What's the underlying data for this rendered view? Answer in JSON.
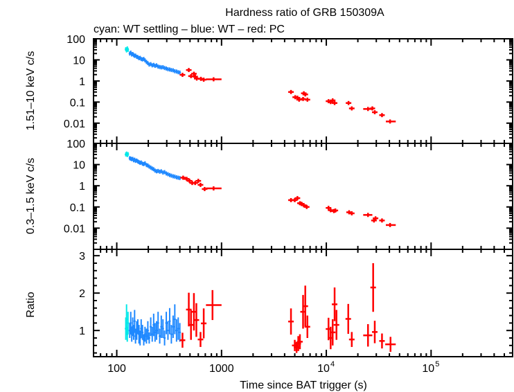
{
  "chart_data": {
    "type": "scatter",
    "title": "Hardness ratio of GRB 150309A",
    "subtitle": "cyan: WT settling – blue: WT – red: PC",
    "xlabel": "Time since BAT trigger (s)",
    "x_scale": "log",
    "xlim": [
      60,
      600000
    ],
    "x_ticks": [
      {
        "value": 100,
        "label": "100"
      },
      {
        "value": 1000,
        "label": "1000"
      },
      {
        "value": 10000,
        "label": "10",
        "exp": "4"
      },
      {
        "value": 100000,
        "label": "10",
        "exp": "5"
      }
    ],
    "colors": {
      "wt_settling": "#00e8e8",
      "wt": "#1e88ff",
      "pc": "#ff0000",
      "axes": "#000000"
    },
    "panels": [
      {
        "ylabel": "1.51–10 keV c/s",
        "y_scale": "log",
        "ylim": [
          0.0011,
          100
        ],
        "y_ticks": [
          {
            "value": 100,
            "label": "100"
          },
          {
            "value": 10,
            "label": "10"
          },
          {
            "value": 1,
            "label": "1"
          },
          {
            "value": 0.1,
            "label": "0.1"
          },
          {
            "value": 0.01,
            "label": "0.01"
          }
        ],
        "series": {
          "wt_settling": [
            [
              122,
              32
            ],
            [
              124,
              28
            ],
            [
              126,
              35
            ],
            [
              128,
              30
            ]
          ],
          "wt": [
            [
              133,
              20
            ],
            [
              136,
              22
            ],
            [
              139,
              18
            ],
            [
              142,
              19
            ],
            [
              145,
              17
            ],
            [
              148,
              15.5
            ],
            [
              151,
              16
            ],
            [
              155,
              14
            ],
            [
              159,
              13.5
            ],
            [
              163,
              12
            ],
            [
              167,
              12.5
            ],
            [
              171,
              11
            ],
            [
              176,
              10.5
            ],
            [
              181,
              11
            ],
            [
              186,
              9.5
            ],
            [
              192,
              8
            ],
            [
              198,
              7
            ],
            [
              204,
              6
            ],
            [
              211,
              6.3
            ],
            [
              218,
              5.5
            ],
            [
              225,
              5.8
            ],
            [
              232,
              5.2
            ],
            [
              240,
              5.5
            ],
            [
              248,
              4.8
            ],
            [
              257,
              4.6
            ],
            [
              266,
              4.4
            ],
            [
              276,
              4.5
            ],
            [
              286,
              4.1
            ],
            [
              297,
              3.9
            ],
            [
              308,
              3.6
            ],
            [
              320,
              3.5
            ],
            [
              332,
              3.3
            ],
            [
              345,
              3.2
            ],
            [
              358,
              2.9
            ],
            [
              372,
              2.8
            ],
            [
              386,
              2.6
            ],
            [
              400,
              2.5
            ]
          ],
          "pc": [
            [
              424,
              1.95
            ],
            [
              487,
              3.3
            ],
            [
              511,
              1.7
            ],
            [
              545,
              2.2
            ],
            [
              560,
              1.6
            ],
            [
              580,
              1.3
            ],
            [
              635,
              1.26
            ],
            [
              676,
              1.15
            ],
            [
              840,
              1.2,
              710,
              1000
            ],
            [
              4600,
              0.3
            ],
            [
              5050,
              0.17
            ],
            [
              5300,
              0.16
            ],
            [
              5500,
              0.13
            ],
            [
              6000,
              0.14
            ],
            [
              6100,
              0.26
            ],
            [
              6300,
              0.23
            ],
            [
              6600,
              0.13
            ],
            [
              10500,
              0.11
            ],
            [
              11000,
              0.1
            ],
            [
              11500,
              0.12
            ],
            [
              12000,
              0.09
            ],
            [
              16300,
              0.09
            ],
            [
              17500,
              0.05
            ],
            [
              25000,
              0.047,
              22500,
              27500
            ],
            [
              27500,
              0.05
            ],
            [
              29000,
              0.033
            ],
            [
              34000,
              0.024
            ],
            [
              40600,
              0.012,
              37000,
              46000
            ]
          ]
        }
      },
      {
        "ylabel": "0.3–1.5 keV c/s",
        "y_scale": "log",
        "ylim": [
          0.001,
          100
        ],
        "y_ticks": [
          {
            "value": 100,
            "label": "100"
          },
          {
            "value": 10,
            "label": "10"
          },
          {
            "value": 1,
            "label": "1"
          },
          {
            "value": 0.1,
            "label": "0.1"
          },
          {
            "value": 0.01,
            "label": "0.01"
          }
        ],
        "series": {
          "wt_settling": [
            [
              122,
              30
            ],
            [
              124,
              33
            ],
            [
              126,
              28
            ],
            [
              128,
              31
            ]
          ],
          "wt": [
            [
              133,
              20
            ],
            [
              136,
              19
            ],
            [
              139,
              18
            ],
            [
              142,
              18.5
            ],
            [
              145,
              16
            ],
            [
              148,
              17
            ],
            [
              151,
              15
            ],
            [
              155,
              15.5
            ],
            [
              159,
              14
            ],
            [
              163,
              13
            ],
            [
              167,
              12
            ],
            [
              171,
              12.5
            ],
            [
              176,
              11
            ],
            [
              181,
              10.5
            ],
            [
              186,
              11.5
            ],
            [
              192,
              9.5
            ],
            [
              198,
              9
            ],
            [
              204,
              8
            ],
            [
              211,
              7.2
            ],
            [
              218,
              6.5
            ],
            [
              225,
              6
            ],
            [
              232,
              5.2
            ],
            [
              240,
              4.8
            ],
            [
              248,
              5
            ],
            [
              257,
              4.6
            ],
            [
              266,
              4.8
            ],
            [
              276,
              4.2
            ],
            [
              286,
              4.4
            ],
            [
              297,
              3.8
            ],
            [
              308,
              3.5
            ],
            [
              320,
              3.2
            ],
            [
              332,
              3
            ],
            [
              345,
              2.8
            ],
            [
              358,
              2.7
            ],
            [
              372,
              2.5
            ],
            [
              386,
              2.4
            ],
            [
              400,
              2.3
            ]
          ],
          "pc": [
            [
              430,
              2.4
            ],
            [
              465,
              2.1
            ],
            [
              495,
              1.7
            ],
            [
              525,
              1.35
            ],
            [
              560,
              1.35
            ],
            [
              600,
              1.7
            ],
            [
              630,
              1.1
            ],
            [
              690,
              0.7
            ],
            [
              840,
              0.75,
              710,
              1000
            ],
            [
              4600,
              0.21
            ],
            [
              5000,
              0.21
            ],
            [
              5300,
              0.26
            ],
            [
              5600,
              0.15
            ],
            [
              5800,
              0.14
            ],
            [
              6100,
              0.12
            ],
            [
              6500,
              0.1
            ],
            [
              10500,
              0.09
            ],
            [
              11000,
              0.07
            ],
            [
              11800,
              0.064
            ],
            [
              12200,
              0.068
            ],
            [
              16500,
              0.056
            ],
            [
              17500,
              0.05
            ],
            [
              25000,
              0.042,
              22500,
              27500
            ],
            [
              28500,
              0.023
            ],
            [
              29500,
              0.029
            ],
            [
              34000,
              0.023
            ],
            [
              40600,
              0.014,
              37000,
              46000
            ]
          ]
        }
      },
      {
        "ylabel": "Ratio",
        "y_scale": "linear",
        "ylim": [
          0.3,
          3.17
        ],
        "y_ticks": [
          {
            "value": 3,
            "label": "3"
          },
          {
            "value": 2,
            "label": "2"
          },
          {
            "value": 1,
            "label": "1"
          }
        ],
        "series": {
          "wt_settling": [
            [
              122,
              1.05,
              0.3
            ],
            [
              124,
              1.3,
              0.4
            ],
            [
              126,
              0.9,
              0.2
            ],
            [
              128,
              1.2,
              0.3
            ]
          ],
          "wt": [
            [
              133,
              1.0,
              0.2
            ],
            [
              136,
              1.2,
              0.3
            ],
            [
              139,
              0.9,
              0.2
            ],
            [
              142,
              1.1,
              0.25
            ],
            [
              145,
              0.95,
              0.2
            ],
            [
              148,
              1.25,
              0.3
            ],
            [
              151,
              0.85,
              0.2
            ],
            [
              155,
              1.0,
              0.25
            ],
            [
              159,
              1.1,
              0.2
            ],
            [
              163,
              0.9,
              0.25
            ],
            [
              167,
              0.8,
              0.2
            ],
            [
              171,
              1.05,
              0.25
            ],
            [
              176,
              0.95,
              0.2
            ],
            [
              181,
              0.75,
              0.15
            ],
            [
              186,
              0.9,
              0.2
            ],
            [
              192,
              0.85,
              0.2
            ],
            [
              198,
              1.0,
              0.25
            ],
            [
              204,
              0.8,
              0.15
            ],
            [
              211,
              1.1,
              0.25
            ],
            [
              218,
              0.9,
              0.2
            ],
            [
              225,
              1.15,
              0.3
            ],
            [
              232,
              0.95,
              0.25
            ],
            [
              240,
              1.0,
              0.25
            ],
            [
              248,
              1.2,
              0.3
            ],
            [
              257,
              0.85,
              0.2
            ],
            [
              266,
              1.1,
              0.3
            ],
            [
              276,
              1.05,
              0.25
            ],
            [
              286,
              0.8,
              0.2
            ],
            [
              297,
              1.2,
              0.3
            ],
            [
              308,
              1.0,
              0.25
            ],
            [
              320,
              1.25,
              0.35
            ],
            [
              332,
              0.9,
              0.25
            ],
            [
              345,
              1.1,
              0.3
            ],
            [
              358,
              1.3,
              0.4
            ],
            [
              372,
              1.0,
              0.3
            ],
            [
              386,
              1.05,
              0.3
            ],
            [
              400,
              0.95,
              0.25
            ]
          ],
          "pc": [
            [
              424,
              0.74,
              0.2
            ],
            [
              487,
              1.56,
              0.45
            ],
            [
              511,
              1.15,
              0.4
            ],
            [
              545,
              1.5,
              0.5
            ],
            [
              575,
              1.28,
              0.45
            ],
            [
              630,
              0.76,
              0.2
            ],
            [
              676,
              1.19,
              0.4
            ],
            [
              820,
              1.68,
              0.4,
              710,
              1000
            ],
            [
              4600,
              1.24,
              0.35
            ],
            [
              5000,
              0.6,
              0.15
            ],
            [
              5200,
              0.55,
              0.15
            ],
            [
              5400,
              0.65,
              0.2
            ],
            [
              5600,
              0.7,
              0.2
            ],
            [
              6000,
              1.5,
              0.45
            ],
            [
              6300,
              1.65,
              0.55
            ],
            [
              6600,
              1.1,
              0.3
            ],
            [
              10500,
              1.04,
              0.3
            ],
            [
              11000,
              0.8,
              0.3
            ],
            [
              11500,
              0.95,
              0.35
            ],
            [
              12000,
              1.7,
              0.45
            ],
            [
              12500,
              1.15,
              0.4
            ],
            [
              16200,
              1.31,
              0.4
            ],
            [
              17500,
              0.76,
              0.2
            ],
            [
              25000,
              0.87,
              0.3,
              22500,
              27500
            ],
            [
              28000,
              2.15,
              0.65
            ],
            [
              29000,
              0.96,
              0.3
            ],
            [
              34000,
              0.72,
              0.2
            ],
            [
              41000,
              0.63,
              0.2,
              36500,
              46000
            ]
          ]
        }
      }
    ]
  }
}
